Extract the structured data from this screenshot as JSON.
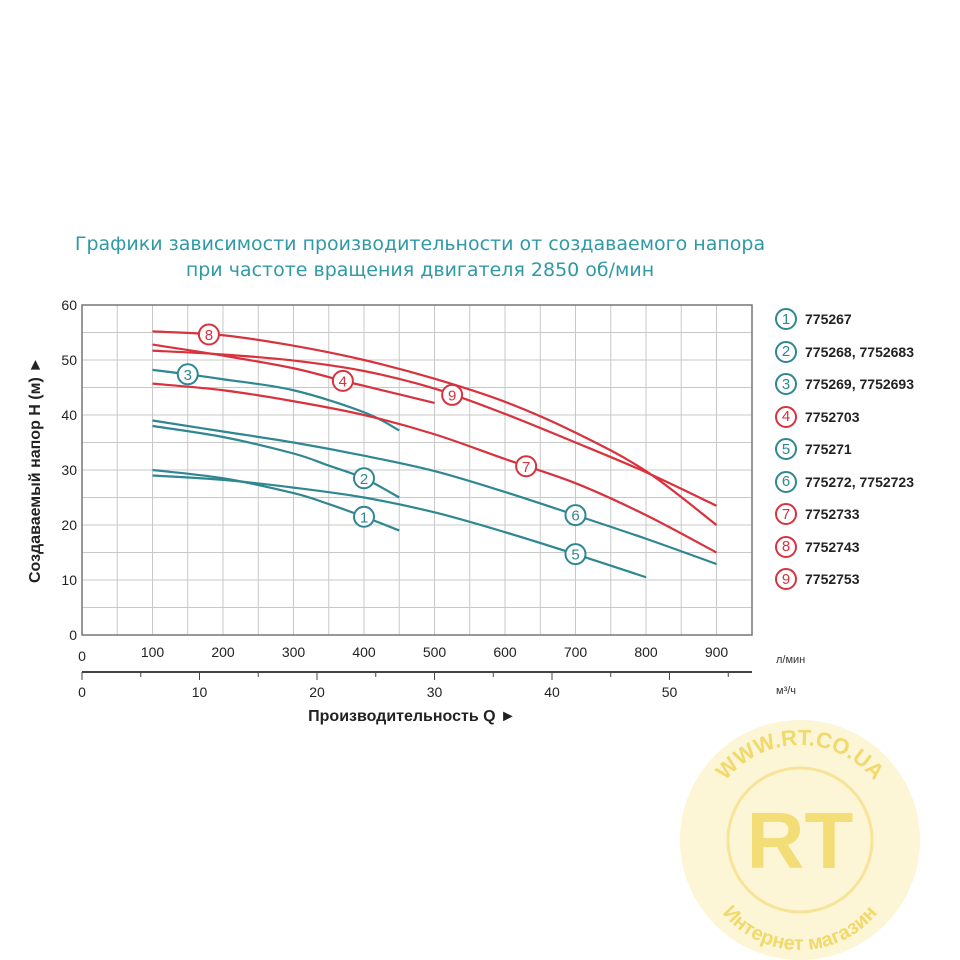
{
  "chart_data": {
    "type": "line",
    "title": [
      "Графики зависимости производительности от создаваемого напора",
      "при частоте вращения двигателя 2850 об/мин"
    ],
    "ylabel": "Создаваемый напор H (м) ►",
    "xlabel": "Производительность Q ►",
    "x_unit_primary": "л/мин",
    "x_unit_secondary": "м³/ч",
    "ylim": [
      0,
      60
    ],
    "xlim": [
      0,
      950
    ],
    "y_ticks": [
      "0",
      "10",
      "20",
      "30",
      "40",
      "50",
      "60"
    ],
    "x_ticks_primary": [
      "0",
      "100",
      "200",
      "300",
      "400",
      "500",
      "600",
      "700",
      "800",
      "900"
    ],
    "x_ticks_secondary": [
      "0",
      "10",
      "20",
      "30",
      "40",
      "50"
    ],
    "grid": true,
    "legend_placement": "right",
    "colors": {
      "teal": "#2e8791",
      "red": "#d8323d",
      "title": "#2f9aa6"
    },
    "series": [
      {
        "name": "1",
        "label": "775267",
        "color": "teal",
        "label_at": 400,
        "x": [
          100,
          200,
          300,
          350,
          400,
          450
        ],
        "y": [
          30,
          28.5,
          25.8,
          23.8,
          21.5,
          19
        ]
      },
      {
        "name": "2",
        "label": "775268, 7752683",
        "color": "teal",
        "label_at": 400,
        "x": [
          100,
          200,
          300,
          350,
          400,
          450
        ],
        "y": [
          38,
          36,
          33,
          30.8,
          28.5,
          25
        ]
      },
      {
        "name": "3",
        "label": "775269, 7752693",
        "color": "teal",
        "label_at": 150,
        "x": [
          100,
          150,
          200,
          300,
          400,
          450
        ],
        "y": [
          48.2,
          47.4,
          46.5,
          44.5,
          40.5,
          37.2
        ]
      },
      {
        "name": "4",
        "label": "7752703",
        "color": "red",
        "label_at": 370,
        "x": [
          100,
          200,
          300,
          370,
          400,
          500
        ],
        "y": [
          52.8,
          50.8,
          48.5,
          46.2,
          45.3,
          42.2
        ]
      },
      {
        "name": "5",
        "label": "775271",
        "color": "teal",
        "label_at": 700,
        "x": [
          100,
          200,
          300,
          400,
          500,
          600,
          700,
          800
        ],
        "y": [
          29,
          28.2,
          26.8,
          25,
          22.3,
          18.7,
          14.7,
          10.5
        ]
      },
      {
        "name": "6",
        "label": "775272, 7752723",
        "color": "teal",
        "label_at": 700,
        "x": [
          100,
          200,
          300,
          400,
          500,
          600,
          700,
          800,
          900
        ],
        "y": [
          39,
          37,
          35,
          32.6,
          29.8,
          26,
          21.8,
          17.5,
          12.9
        ]
      },
      {
        "name": "7",
        "label": "7752733",
        "color": "red",
        "label_at": 630,
        "x": [
          100,
          200,
          300,
          400,
          500,
          600,
          700,
          800,
          900
        ],
        "y": [
          45.7,
          44.5,
          42.5,
          40,
          36.5,
          32,
          27.6,
          21.8,
          15
        ]
      },
      {
        "name": "8",
        "label": "7752743",
        "color": "red",
        "label_at": 180,
        "x": [
          100,
          200,
          300,
          400,
          500,
          600,
          700,
          800,
          900
        ],
        "y": [
          55.2,
          54.5,
          52.6,
          50,
          46.6,
          42.4,
          36.8,
          29.8,
          20
        ]
      },
      {
        "name": "9",
        "label": "7752753",
        "color": "red",
        "label_at": 525,
        "x": [
          100,
          200,
          300,
          400,
          500,
          600,
          700,
          800,
          900
        ],
        "y": [
          51.7,
          51,
          49.9,
          48,
          44.8,
          40.2,
          35,
          29.6,
          23.5
        ]
      }
    ]
  },
  "watermark": {
    "url": "WWW.RT.CO.UA",
    "logo": "RT",
    "caption": "Интернет магазин"
  }
}
